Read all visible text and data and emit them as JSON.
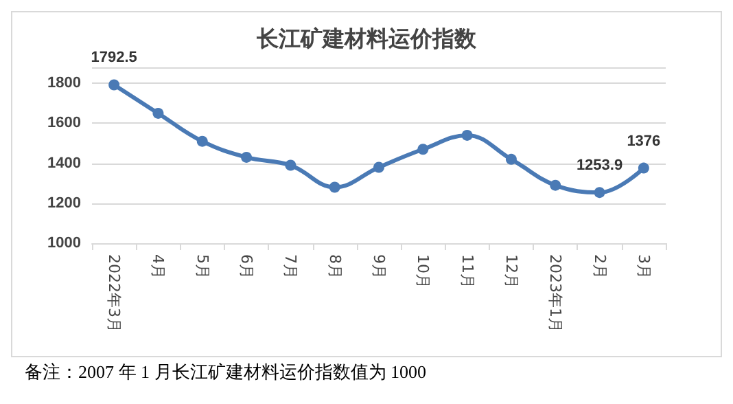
{
  "chart_data": {
    "type": "line",
    "title": "长江矿建材料运价指数",
    "categories": [
      "2022年3月",
      "4月",
      "5月",
      "6月",
      "7月",
      "8月",
      "9月",
      "10月",
      "11月",
      "12月",
      "2023年1月",
      "2月",
      "3月"
    ],
    "series": [
      {
        "color": "#4a7ab5",
        "values": [
          1792.5,
          1650,
          1510,
          1430,
          1390,
          1280,
          1380,
          1470,
          1540,
          1420,
          1290,
          1253.9,
          1376
        ],
        "value_labels": [
          "1792.5",
          null,
          null,
          null,
          null,
          null,
          null,
          null,
          null,
          null,
          null,
          "1253.9",
          "1376"
        ]
      }
    ],
    "ylim": [
      1000,
      1880
    ],
    "yticks": [
      1000,
      1200,
      1400,
      1600,
      1800
    ],
    "grid": "y",
    "marker": "circle",
    "annotations": [
      "备注：2007 年 1 月长江矿建材料运价指数值为 1000"
    ]
  }
}
